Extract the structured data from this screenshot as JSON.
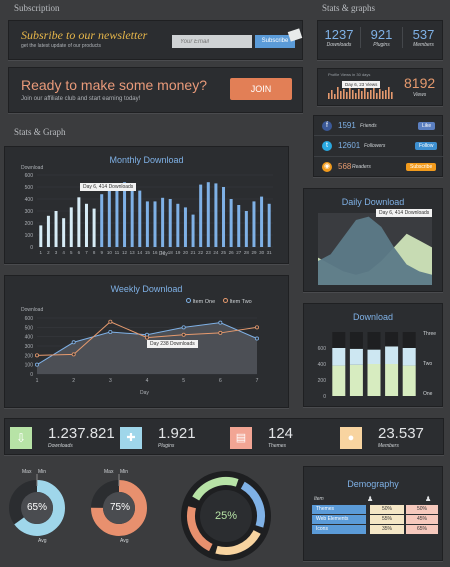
{
  "sections": {
    "subscription": "Subscription",
    "stats_graphs": "Stats & graphs",
    "stats_graph": "Stats & Graph"
  },
  "newsletter": {
    "title": "Subsribe to our newsletter",
    "subtitle": "get the latest update of our products",
    "email_placeholder": "Your Email",
    "subscribe_label": "Subscribe"
  },
  "affiliate": {
    "title": "Ready to make some money?",
    "subtitle": "Join our affiliate club and start earning today!",
    "join_label": "JOIN"
  },
  "counters": [
    {
      "value": "1237",
      "label": "Downloads"
    },
    {
      "value": "921",
      "label": "Plugins"
    },
    {
      "value": "537",
      "label": "Members"
    }
  ],
  "profile_views": {
    "label": "Profile Views in 30 days",
    "tooltip": "Day 6, 23 Views",
    "value": "8192",
    "sub": "Views"
  },
  "social": [
    {
      "value": "1591",
      "label": "Friends",
      "action": "Like",
      "icon": "facebook-icon",
      "color": "#3b5998"
    },
    {
      "value": "12601",
      "label": "Followers",
      "action": "Follow",
      "icon": "twitter-icon",
      "color": "#29a9e1"
    },
    {
      "value": "568",
      "label": "Readers",
      "action": "Subscribe",
      "icon": "rss-icon",
      "color": "#f29b1d"
    }
  ],
  "monthly": {
    "title": "Monthly Download",
    "ylabel": "Download",
    "xlabel": "Day",
    "tooltip": "Day 6, 414 Downloads"
  },
  "daily": {
    "title": "Daily Download",
    "tooltip": "Day 6, 414 Downloads"
  },
  "weekly": {
    "title": "Weekly Download",
    "ylabel": "Download",
    "xlabel": "Day",
    "tooltip": "Day 238 Downloads",
    "legend": [
      "Item One",
      "Item Two"
    ]
  },
  "download": {
    "title": "Download",
    "legend": [
      "Three",
      "Two",
      "One"
    ]
  },
  "totals": [
    {
      "value": "1.237.821",
      "label": "Downloads",
      "icon": "download-icon",
      "color": "#b7e3a6"
    },
    {
      "value": "1.921",
      "label": "Plugins",
      "icon": "puzzle-icon",
      "color": "#9fd6ea"
    },
    {
      "value": "124",
      "label": "Themes",
      "icon": "document-icon",
      "color": "#f2a594"
    },
    {
      "value": "23.537",
      "label": "Members",
      "icon": "user-icon",
      "color": "#f8d4a0"
    }
  ],
  "donut1": {
    "value": "65%",
    "max": "Max",
    "min": "Min",
    "avg": "Avg"
  },
  "donut2": {
    "value": "75%",
    "max": "Max",
    "min": "Min",
    "avg": "Avg"
  },
  "donut3": {
    "value": "25%"
  },
  "demography": {
    "title": "Demography",
    "header": "Item",
    "rows": [
      {
        "label": "Themes",
        "a": "50%",
        "b": "50%"
      },
      {
        "label": "Web Elements",
        "a": "55%",
        "b": "45%"
      },
      {
        "label": "Icons",
        "a": "35%",
        "b": "65%"
      }
    ]
  },
  "chart_data": [
    {
      "type": "bar",
      "title": "Monthly Download",
      "ylabel": "Download",
      "xlabel": "Day",
      "ylim": [
        0,
        600
      ],
      "yticks": [
        0,
        100,
        200,
        300,
        400,
        500,
        600
      ],
      "categories": [
        "1",
        "2",
        "3",
        "4",
        "5",
        "6",
        "7",
        "8",
        "9",
        "10",
        "11",
        "12",
        "13",
        "14",
        "15",
        "16",
        "17",
        "18",
        "19",
        "20",
        "21",
        "22",
        "23",
        "24",
        "25",
        "26",
        "27",
        "28",
        "29",
        "30",
        "31"
      ],
      "values": [
        180,
        260,
        300,
        240,
        330,
        414,
        360,
        320,
        440,
        470,
        500,
        540,
        520,
        470,
        380,
        380,
        410,
        400,
        360,
        330,
        270,
        520,
        540,
        530,
        500,
        400,
        350,
        300,
        380,
        420,
        360
      ]
    },
    {
      "type": "area",
      "title": "Daily Download",
      "series": [
        {
          "values": [
            0.35,
            0.45,
            0.7,
            0.95,
            1.0,
            0.85,
            0.55,
            0.3,
            0.2,
            0.15
          ]
        },
        {
          "values": [
            0.4,
            0.3,
            0.2,
            0.15,
            0.2,
            0.35,
            0.55,
            0.75,
            0.65,
            0.55
          ]
        }
      ]
    },
    {
      "type": "line",
      "title": "Weekly Download",
      "ylabel": "Download",
      "xlabel": "Day",
      "ylim": [
        0,
        600
      ],
      "yticks": [
        0,
        100,
        200,
        300,
        400,
        500,
        600
      ],
      "x": [
        1,
        2,
        3,
        4,
        5,
        6,
        7
      ],
      "series": [
        {
          "name": "Item One",
          "values": [
            100,
            340,
            450,
            420,
            500,
            550,
            380
          ]
        },
        {
          "name": "Item Two",
          "values": [
            200,
            210,
            560,
            390,
            420,
            440,
            500
          ]
        }
      ]
    },
    {
      "type": "bar",
      "title": "Download",
      "ylim": [
        0,
        800
      ],
      "yticks": [
        0,
        200,
        400,
        600
      ],
      "series": [
        {
          "name": "One",
          "values": [
            380,
            390,
            400,
            400,
            380
          ]
        },
        {
          "name": "Two",
          "values": [
            220,
            200,
            180,
            220,
            220
          ]
        },
        {
          "name": "Three",
          "values": [
            200,
            210,
            220,
            180,
            200
          ]
        }
      ]
    }
  ]
}
